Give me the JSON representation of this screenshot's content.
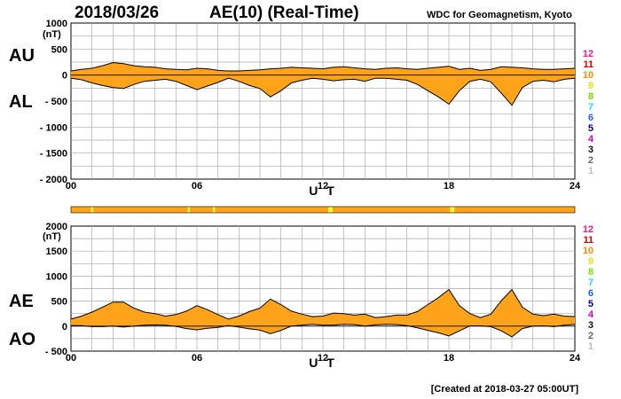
{
  "header": {
    "date": "2018/03/26",
    "title": "AE(10) (Real-Time)",
    "source": "WDC for Geomagnetism, Kyoto"
  },
  "footer": {
    "created": "[Created at 2018-03-27 05:00UT]"
  },
  "colors": {
    "fill": "#ffa31a",
    "outline": "#000000",
    "grid": "#aaaaaa",
    "strip": "#ffa31a",
    "highlight": "#ffff33"
  },
  "legend": {
    "items": [
      {
        "label": "12",
        "color": "#ff1493"
      },
      {
        "label": "11",
        "color": "#dd0000"
      },
      {
        "label": "10",
        "color": "#ff8c00"
      },
      {
        "label": "9",
        "color": "#e5e500"
      },
      {
        "label": "8",
        "color": "#77dd00"
      },
      {
        "label": "7",
        "color": "#22dddd"
      },
      {
        "label": "6",
        "color": "#1e64ff"
      },
      {
        "label": "5",
        "color": "#0000aa"
      },
      {
        "label": "4",
        "color": "#cc00cc"
      },
      {
        "label": "3",
        "color": "#111111"
      },
      {
        "label": "2",
        "color": "#666666"
      },
      {
        "label": "1",
        "color": "#bbbbbb"
      }
    ]
  },
  "chart_data": [
    {
      "type": "area",
      "title": "AU / AL",
      "xlabel": "U T",
      "ylabel": "(nT)",
      "ylim": [
        -2000,
        1000
      ],
      "xlim": [
        0,
        24
      ],
      "yticks": [
        1000,
        500,
        0,
        -500,
        -1000,
        -1500,
        -2000
      ],
      "ytick_labels": [
        "1000",
        "500",
        "0",
        "- 500",
        "- 1000",
        "- 1500",
        "- 2000"
      ],
      "xticks": [
        0,
        6,
        12,
        18,
        24
      ],
      "xtick_labels": [
        "00",
        "06",
        "12",
        "18",
        "24"
      ],
      "series_labels": {
        "upper": "AU",
        "lower": "AL"
      },
      "x": [
        0,
        0.5,
        1,
        1.5,
        2,
        2.5,
        3,
        3.5,
        4,
        4.5,
        5,
        5.5,
        6,
        6.5,
        7,
        7.5,
        8,
        8.5,
        9,
        9.5,
        10,
        10.5,
        11,
        11.5,
        12,
        12.5,
        13,
        13.5,
        14,
        14.5,
        15,
        15.5,
        16,
        16.5,
        17,
        17.5,
        18,
        18.5,
        19,
        19.5,
        20,
        20.5,
        21,
        21.5,
        22,
        22.5,
        23,
        23.5,
        24
      ],
      "series": [
        {
          "name": "AU",
          "values": [
            80,
            110,
            130,
            180,
            240,
            220,
            180,
            160,
            150,
            120,
            110,
            100,
            130,
            120,
            90,
            80,
            80,
            90,
            100,
            120,
            130,
            150,
            140,
            130,
            120,
            150,
            160,
            140,
            120,
            110,
            130,
            140,
            120,
            110,
            130,
            150,
            170,
            110,
            130,
            90,
            110,
            160,
            150,
            140,
            120,
            110,
            110,
            120,
            130
          ]
        },
        {
          "name": "AL",
          "values": [
            -60,
            -90,
            -150,
            -200,
            -240,
            -260,
            -180,
            -120,
            -100,
            -80,
            -120,
            -200,
            -280,
            -210,
            -140,
            -60,
            -120,
            -200,
            -260,
            -420,
            -300,
            -150,
            -100,
            -60,
            -80,
            -110,
            -90,
            -80,
            -120,
            -60,
            -60,
            -80,
            -100,
            -180,
            -300,
            -420,
            -560,
            -300,
            -120,
            -80,
            -130,
            -350,
            -580,
            -240,
            -120,
            -100,
            -130,
            -80,
            -60
          ]
        }
      ]
    },
    {
      "type": "area",
      "title": "AE / AO",
      "xlabel": "U T",
      "ylabel": "(nT)",
      "ylim": [
        -500,
        2000
      ],
      "xlim": [
        0,
        24
      ],
      "yticks": [
        2000,
        1500,
        1000,
        500,
        0,
        -500
      ],
      "ytick_labels": [
        "2000",
        "1500",
        "1000",
        "500",
        "0",
        "- 500"
      ],
      "xticks": [
        0,
        6,
        12,
        18,
        24
      ],
      "xtick_labels": [
        "00",
        "06",
        "12",
        "18",
        "24"
      ],
      "series_labels": {
        "upper": "AE",
        "lower": "AO"
      },
      "x": [
        0,
        0.5,
        1,
        1.5,
        2,
        2.5,
        3,
        3.5,
        4,
        4.5,
        5,
        5.5,
        6,
        6.5,
        7,
        7.5,
        8,
        8.5,
        9,
        9.5,
        10,
        10.5,
        11,
        11.5,
        12,
        12.5,
        13,
        13.5,
        14,
        14.5,
        15,
        15.5,
        16,
        16.5,
        17,
        17.5,
        18,
        18.5,
        19,
        19.5,
        20,
        20.5,
        21,
        21.5,
        22,
        22.5,
        23,
        23.5,
        24
      ],
      "series": [
        {
          "name": "AE",
          "values": [
            140,
            200,
            280,
            380,
            480,
            480,
            360,
            280,
            250,
            200,
            230,
            300,
            410,
            330,
            230,
            140,
            200,
            290,
            360,
            540,
            430,
            300,
            240,
            190,
            200,
            260,
            250,
            220,
            240,
            170,
            190,
            220,
            220,
            290,
            430,
            570,
            730,
            410,
            250,
            170,
            240,
            510,
            730,
            380,
            240,
            210,
            240,
            200,
            190
          ]
        },
        {
          "name": "AO",
          "values": [
            10,
            10,
            -10,
            -10,
            0,
            -20,
            0,
            20,
            25,
            20,
            -5,
            -50,
            -75,
            -45,
            -25,
            10,
            -20,
            -55,
            -80,
            -150,
            -85,
            0,
            20,
            35,
            20,
            20,
            35,
            30,
            0,
            25,
            35,
            30,
            10,
            -35,
            -85,
            -135,
            -195,
            -95,
            5,
            5,
            -10,
            -95,
            -215,
            -50,
            0,
            5,
            -10,
            20,
            35
          ]
        }
      ]
    }
  ],
  "strip": {
    "x_range": [
      0,
      24
    ],
    "highlights": [
      1.0,
      5.6,
      6.8,
      12.3,
      12.4,
      18.1,
      18.2
    ]
  }
}
